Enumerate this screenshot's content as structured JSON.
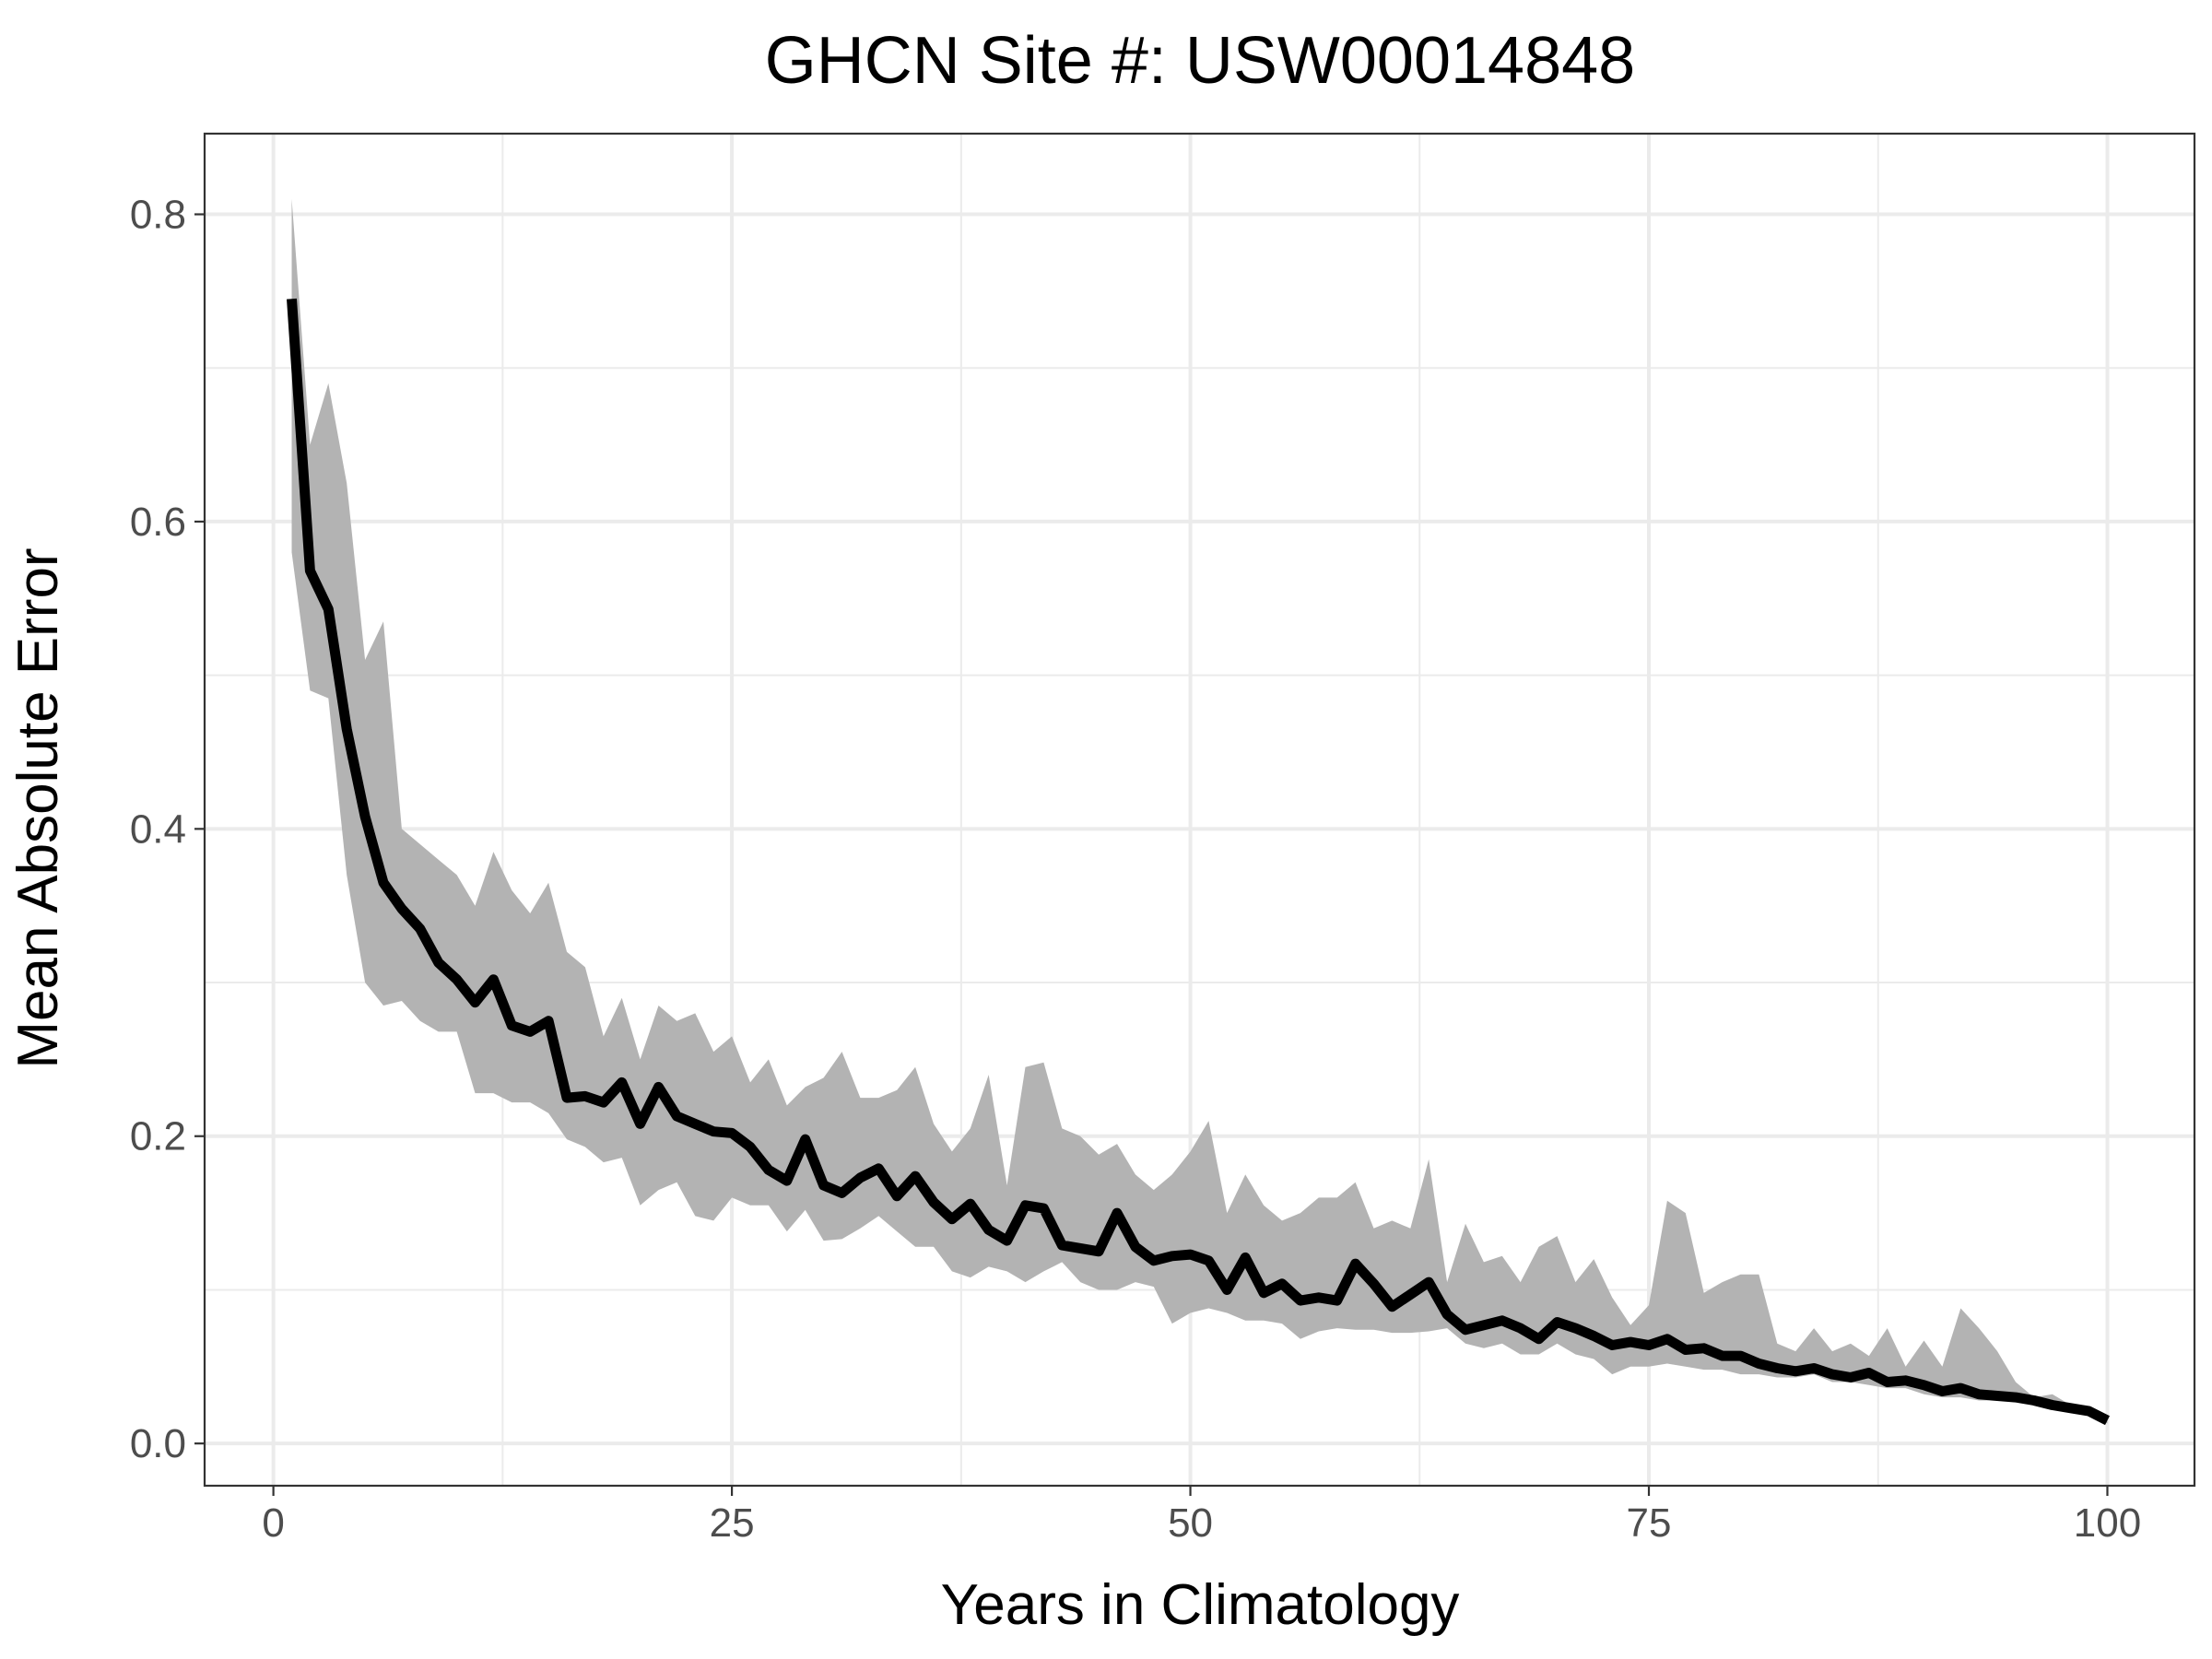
{
  "chart_data": {
    "type": "line",
    "title": "GHCN Site #: USW00014848",
    "xlabel": "Years in Climatology",
    "ylabel": "Mean Absolute Error",
    "xlim": [
      -3.75,
      104.75
    ],
    "ylim": [
      -0.0275,
      0.8525
    ],
    "x_ticks": [
      {
        "value": 0,
        "label": "0"
      },
      {
        "value": 25,
        "label": "25"
      },
      {
        "value": 50,
        "label": "50"
      },
      {
        "value": 75,
        "label": "75"
      },
      {
        "value": 100,
        "label": "100"
      }
    ],
    "x_minor_ticks": [
      12.5,
      37.5,
      62.5,
      87.5
    ],
    "y_ticks": [
      {
        "value": 0.0,
        "label": "0.0"
      },
      {
        "value": 0.2,
        "label": "0.2"
      },
      {
        "value": 0.4,
        "label": "0.4"
      },
      {
        "value": 0.6,
        "label": "0.6"
      },
      {
        "value": 0.8,
        "label": "0.8"
      }
    ],
    "y_minor_ticks": [
      0.1,
      0.3,
      0.5,
      0.7
    ],
    "grid": true,
    "colors": {
      "line": "#000000",
      "band": "#b3b3b3",
      "grid": "#ebebeb",
      "panel_border": "#333333"
    },
    "x": [
      1,
      2,
      3,
      4,
      5,
      6,
      7,
      8,
      9,
      10,
      11,
      12,
      13,
      14,
      15,
      16,
      17,
      18,
      19,
      20,
      21,
      22,
      23,
      24,
      25,
      26,
      27,
      28,
      29,
      30,
      31,
      32,
      33,
      34,
      35,
      36,
      37,
      38,
      39,
      40,
      41,
      42,
      43,
      44,
      45,
      46,
      47,
      48,
      49,
      50,
      51,
      52,
      53,
      54,
      55,
      56,
      57,
      58,
      59,
      60,
      61,
      62,
      63,
      64,
      65,
      66,
      67,
      68,
      69,
      70,
      71,
      72,
      73,
      74,
      75,
      76,
      77,
      78,
      79,
      80,
      81,
      82,
      83,
      84,
      85,
      86,
      87,
      88,
      89,
      90,
      91,
      92,
      93,
      94,
      95,
      96,
      97,
      98,
      99,
      100
    ],
    "series": [
      {
        "values": [
          0.745,
          0.568,
          0.543,
          0.465,
          0.408,
          0.365,
          0.348,
          0.335,
          0.313,
          0.302,
          0.287,
          0.302,
          0.272,
          0.268,
          0.275,
          0.225,
          0.226,
          0.222,
          0.235,
          0.208,
          0.232,
          0.213,
          0.208,
          0.203,
          0.202,
          0.193,
          0.178,
          0.171,
          0.198,
          0.168,
          0.163,
          0.173,
          0.179,
          0.161,
          0.174,
          0.157,
          0.146,
          0.156,
          0.139,
          0.132,
          0.155,
          0.153,
          0.129,
          0.127,
          0.125,
          0.15,
          0.128,
          0.119,
          0.122,
          0.123,
          0.119,
          0.1,
          0.121,
          0.098,
          0.104,
          0.093,
          0.095,
          0.093,
          0.117,
          0.104,
          0.089,
          0.097,
          0.105,
          0.084,
          0.074,
          0.077,
          0.08,
          0.075,
          0.068,
          0.079,
          0.075,
          0.07,
          0.064,
          0.066,
          0.064,
          0.068,
          0.061,
          0.062,
          0.057,
          0.057,
          0.052,
          0.049,
          0.047,
          0.049,
          0.045,
          0.043,
          0.046,
          0.04,
          0.041,
          0.038,
          0.034,
          0.036,
          0.032,
          0.031,
          0.03,
          0.028,
          0.025,
          0.023,
          0.021,
          0.015
        ]
      }
    ],
    "band": {
      "upper": [
        0.81,
        0.65,
        0.69,
        0.625,
        0.51,
        0.535,
        0.4,
        0.39,
        0.38,
        0.37,
        0.35,
        0.385,
        0.36,
        0.345,
        0.365,
        0.32,
        0.31,
        0.265,
        0.29,
        0.25,
        0.285,
        0.275,
        0.28,
        0.255,
        0.265,
        0.235,
        0.25,
        0.22,
        0.232,
        0.238,
        0.255,
        0.225,
        0.225,
        0.23,
        0.245,
        0.208,
        0.19,
        0.205,
        0.24,
        0.168,
        0.245,
        0.248,
        0.205,
        0.2,
        0.188,
        0.195,
        0.175,
        0.165,
        0.175,
        0.19,
        0.21,
        0.15,
        0.175,
        0.155,
        0.145,
        0.15,
        0.16,
        0.16,
        0.17,
        0.14,
        0.145,
        0.14,
        0.185,
        0.105,
        0.143,
        0.118,
        0.122,
        0.105,
        0.128,
        0.135,
        0.105,
        0.12,
        0.095,
        0.077,
        0.09,
        0.158,
        0.15,
        0.098,
        0.105,
        0.11,
        0.11,
        0.065,
        0.06,
        0.075,
        0.06,
        0.065,
        0.057,
        0.075,
        0.05,
        0.067,
        0.05,
        0.088,
        0.075,
        0.06,
        0.04,
        0.03,
        0.032,
        0.025,
        0.022,
        0.015
      ],
      "lower": [
        0.58,
        0.49,
        0.485,
        0.37,
        0.3,
        0.285,
        0.288,
        0.275,
        0.268,
        0.268,
        0.228,
        0.228,
        0.222,
        0.222,
        0.215,
        0.198,
        0.193,
        0.183,
        0.186,
        0.155,
        0.165,
        0.17,
        0.148,
        0.145,
        0.16,
        0.155,
        0.155,
        0.138,
        0.152,
        0.132,
        0.133,
        0.14,
        0.148,
        0.138,
        0.128,
        0.128,
        0.112,
        0.108,
        0.115,
        0.112,
        0.105,
        0.112,
        0.118,
        0.105,
        0.1,
        0.1,
        0.105,
        0.102,
        0.078,
        0.085,
        0.088,
        0.085,
        0.08,
        0.08,
        0.078,
        0.068,
        0.073,
        0.075,
        0.074,
        0.074,
        0.072,
        0.072,
        0.073,
        0.075,
        0.065,
        0.062,
        0.065,
        0.058,
        0.058,
        0.065,
        0.058,
        0.055,
        0.045,
        0.05,
        0.05,
        0.052,
        0.05,
        0.048,
        0.048,
        0.045,
        0.045,
        0.043,
        0.043,
        0.045,
        0.04,
        0.04,
        0.038,
        0.036,
        0.036,
        0.032,
        0.03,
        0.03,
        0.028,
        0.028,
        0.027,
        0.025,
        0.023,
        0.021,
        0.019,
        0.013
      ]
    }
  }
}
